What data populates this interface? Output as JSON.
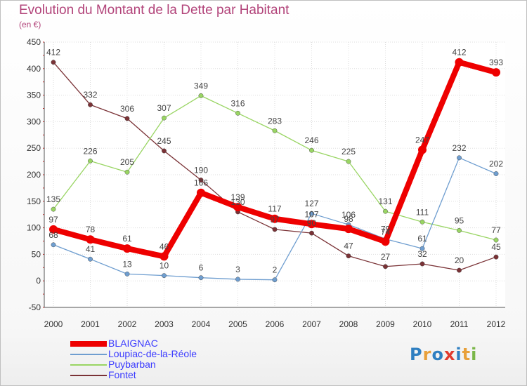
{
  "title": "Evolution du Montant de la Dette par Habitant",
  "subtitle": "(en €)",
  "logo": {
    "text": "Proxiti",
    "letter_colors": [
      "#2f7fc1",
      "#e8a03a",
      "#2f7fc1",
      "#e23b2e",
      "#2f7fc1",
      "#e8a03a",
      "#7ab648"
    ]
  },
  "chart_data": {
    "type": "line",
    "x": [
      "2000",
      "2001",
      "2002",
      "2003",
      "2004",
      "2005",
      "2006",
      "2007",
      "2008",
      "2009",
      "2010",
      "2011",
      "2012"
    ],
    "ylim": [
      -50,
      450
    ],
    "yticks": [
      -50,
      0,
      50,
      100,
      150,
      200,
      250,
      300,
      350,
      400,
      450
    ],
    "grid": true,
    "legend_position": "bottom-left",
    "series": [
      {
        "name": "BLAIGNAC",
        "color": "#ee0000",
        "values": [
          97,
          78,
          61,
          46,
          166,
          139,
          117,
          107,
          98,
          74,
          247,
          412,
          393
        ]
      },
      {
        "name": "Loupiac-de-la-Réole",
        "color": "#6f9ed0",
        "values": [
          68,
          41,
          13,
          10,
          6,
          3,
          2,
          127,
          106,
          79,
          61,
          232,
          202
        ]
      },
      {
        "name": "Puybarban",
        "color": "#99d563",
        "values": [
          135,
          226,
          205,
          307,
          349,
          316,
          283,
          246,
          225,
          131,
          111,
          95,
          77
        ]
      },
      {
        "name": "Fontet",
        "color": "#7a3236",
        "values": [
          412,
          332,
          306,
          245,
          190,
          130,
          97,
          90,
          47,
          27,
          32,
          20,
          45
        ]
      }
    ]
  }
}
